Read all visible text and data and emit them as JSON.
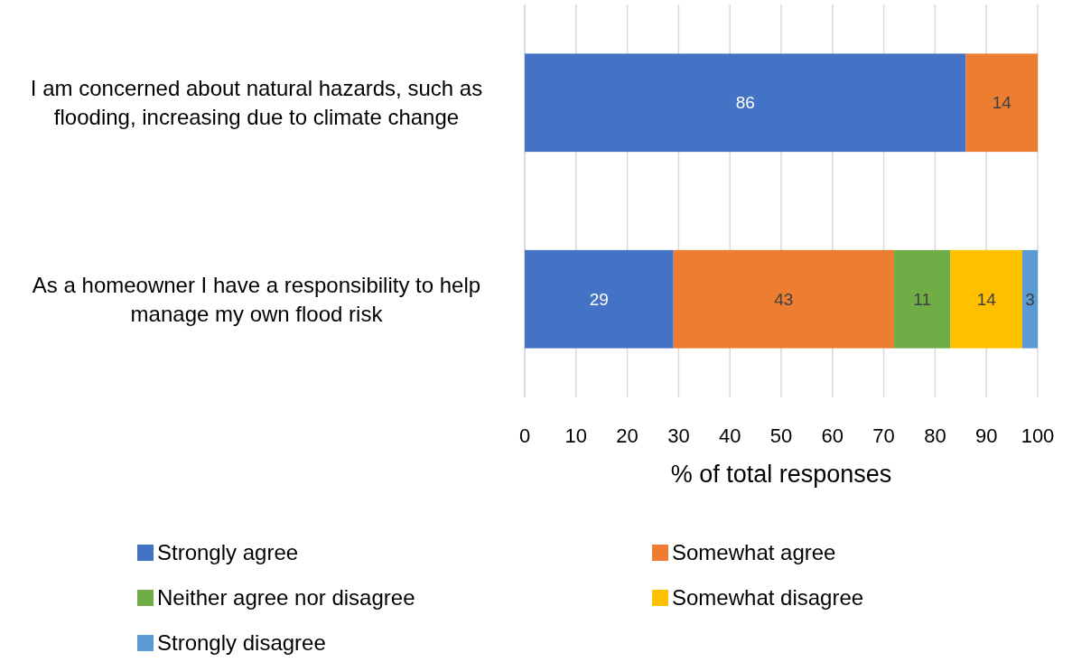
{
  "chart_data": {
    "type": "bar",
    "orientation": "horizontal",
    "stacked": true,
    "categories": [
      "I am concerned about natural hazards, such as flooding, increasing due to climate change",
      "As a homeowner I have a responsibility to help manage my own flood risk"
    ],
    "series": [
      {
        "name": "Strongly agree",
        "color": "#4472c4",
        "values": [
          86,
          29
        ]
      },
      {
        "name": "Somewhat agree",
        "color": "#ed7d31",
        "values": [
          14,
          43
        ]
      },
      {
        "name": "Neither agree nor disagree",
        "color": "#70ad47",
        "values": [
          null,
          11
        ]
      },
      {
        "name": "Somewhat disagree",
        "color": "#ffc000",
        "values": [
          null,
          14
        ]
      },
      {
        "name": "Strongly disagree",
        "color": "#5b9bd5",
        "values": [
          null,
          3
        ]
      }
    ],
    "xlim": [
      0,
      100
    ],
    "xticks": [
      0,
      10,
      20,
      30,
      40,
      50,
      60,
      70,
      80,
      90,
      100
    ],
    "xlabel": "% of total responses",
    "grid": "x",
    "legend": "bottom",
    "data_labels": true
  }
}
